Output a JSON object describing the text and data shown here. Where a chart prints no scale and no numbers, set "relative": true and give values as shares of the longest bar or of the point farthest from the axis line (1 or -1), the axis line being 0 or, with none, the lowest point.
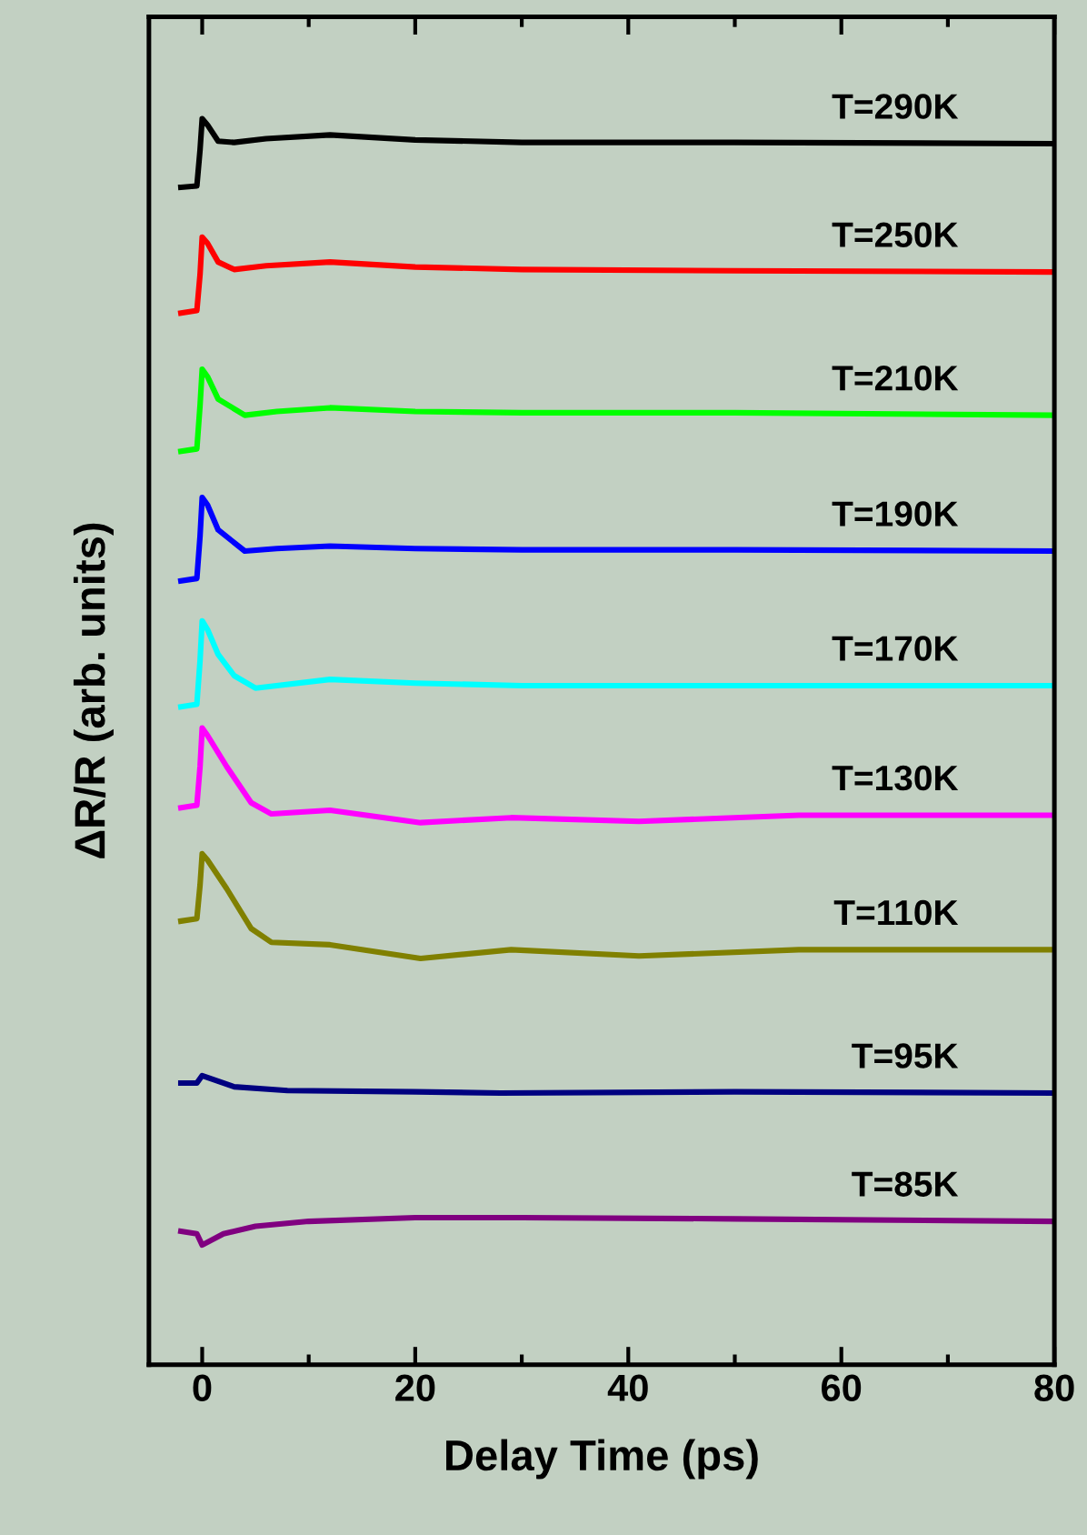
{
  "chart_data": {
    "type": "line",
    "xlabel": "Delay Time (ps)",
    "ylabel": "ΔR/R (arb. units)",
    "relative": true,
    "xlim": [
      -5,
      80
    ],
    "xticks": [
      0,
      20,
      40,
      60,
      80
    ],
    "grid": false,
    "legend": false,
    "marker": "none",
    "line_style": "solid",
    "tick_labels": "x",
    "series": [
      {
        "name": "T=290K",
        "color": "#000000",
        "x": [
          -2,
          -0.5,
          -0.2,
          0,
          0.5,
          1.5,
          3,
          6,
          12,
          20,
          30,
          50,
          80
        ],
        "values": [
          0.945,
          0.946,
          0.975,
          1.0,
          0.995,
          0.982,
          0.981,
          0.984,
          0.987,
          0.983,
          0.981,
          0.981,
          0.98
        ]
      },
      {
        "name": "T=250K",
        "color": "#ff0000",
        "x": [
          -2,
          -0.5,
          -0.2,
          0,
          0.5,
          1.5,
          3,
          6,
          12,
          20,
          30,
          50,
          80
        ],
        "values": [
          0.844,
          0.846,
          0.875,
          0.905,
          0.9,
          0.885,
          0.879,
          0.882,
          0.885,
          0.881,
          0.879,
          0.878,
          0.877
        ]
      },
      {
        "name": "T=210K",
        "color": "#00ff00",
        "x": [
          -2,
          -0.5,
          -0.2,
          0,
          0.5,
          1.5,
          4,
          7,
          12,
          20,
          30,
          50,
          80
        ],
        "values": [
          0.733,
          0.735,
          0.77,
          0.799,
          0.793,
          0.775,
          0.762,
          0.765,
          0.768,
          0.765,
          0.764,
          0.764,
          0.762
        ]
      },
      {
        "name": "T=190K",
        "color": "#0000ff",
        "x": [
          -2,
          -0.5,
          -0.2,
          0,
          0.5,
          1.5,
          4,
          7,
          12,
          20,
          30,
          50,
          80
        ],
        "values": [
          0.629,
          0.631,
          0.665,
          0.696,
          0.69,
          0.67,
          0.653,
          0.655,
          0.657,
          0.655,
          0.654,
          0.654,
          0.653
        ]
      },
      {
        "name": "T=170K",
        "color": "#00ffff",
        "x": [
          -2,
          -0.5,
          -0.2,
          0,
          0.5,
          1.5,
          3,
          5,
          12,
          20,
          30,
          50,
          80
        ],
        "values": [
          0.528,
          0.53,
          0.565,
          0.597,
          0.59,
          0.57,
          0.553,
          0.543,
          0.55,
          0.547,
          0.545,
          0.545,
          0.545
        ]
      },
      {
        "name": "T=130K",
        "color": "#ff00ff",
        "x": [
          -2,
          -0.5,
          -0.2,
          0,
          0.5,
          2.3,
          4.6,
          6.5,
          12,
          20.5,
          29,
          41,
          56,
          80
        ],
        "values": [
          0.447,
          0.449,
          0.48,
          0.511,
          0.505,
          0.48,
          0.451,
          0.442,
          0.445,
          0.435,
          0.439,
          0.436,
          0.441,
          0.441
        ]
      },
      {
        "name": "T=110K",
        "color": "#808000",
        "x": [
          -2,
          -0.5,
          -0.2,
          0,
          0.5,
          2.3,
          4.6,
          6.5,
          12,
          20.5,
          29,
          41,
          56,
          80
        ],
        "values": [
          0.356,
          0.358,
          0.385,
          0.41,
          0.405,
          0.382,
          0.35,
          0.339,
          0.337,
          0.326,
          0.333,
          0.328,
          0.333,
          0.333
        ]
      },
      {
        "name": "T=95K",
        "color": "#000080",
        "x": [
          -2,
          -0.5,
          0,
          3,
          8,
          20,
          28,
          50,
          80
        ],
        "values": [
          0.226,
          0.226,
          0.232,
          0.223,
          0.22,
          0.219,
          0.218,
          0.219,
          0.218
        ]
      },
      {
        "name": "T=85K",
        "color": "#800080",
        "x": [
          -2,
          -0.5,
          0,
          2,
          5,
          10,
          20,
          30,
          50,
          80
        ],
        "values": [
          0.107,
          0.105,
          0.096,
          0.105,
          0.111,
          0.115,
          0.118,
          0.118,
          0.117,
          0.115
        ]
      }
    ]
  }
}
